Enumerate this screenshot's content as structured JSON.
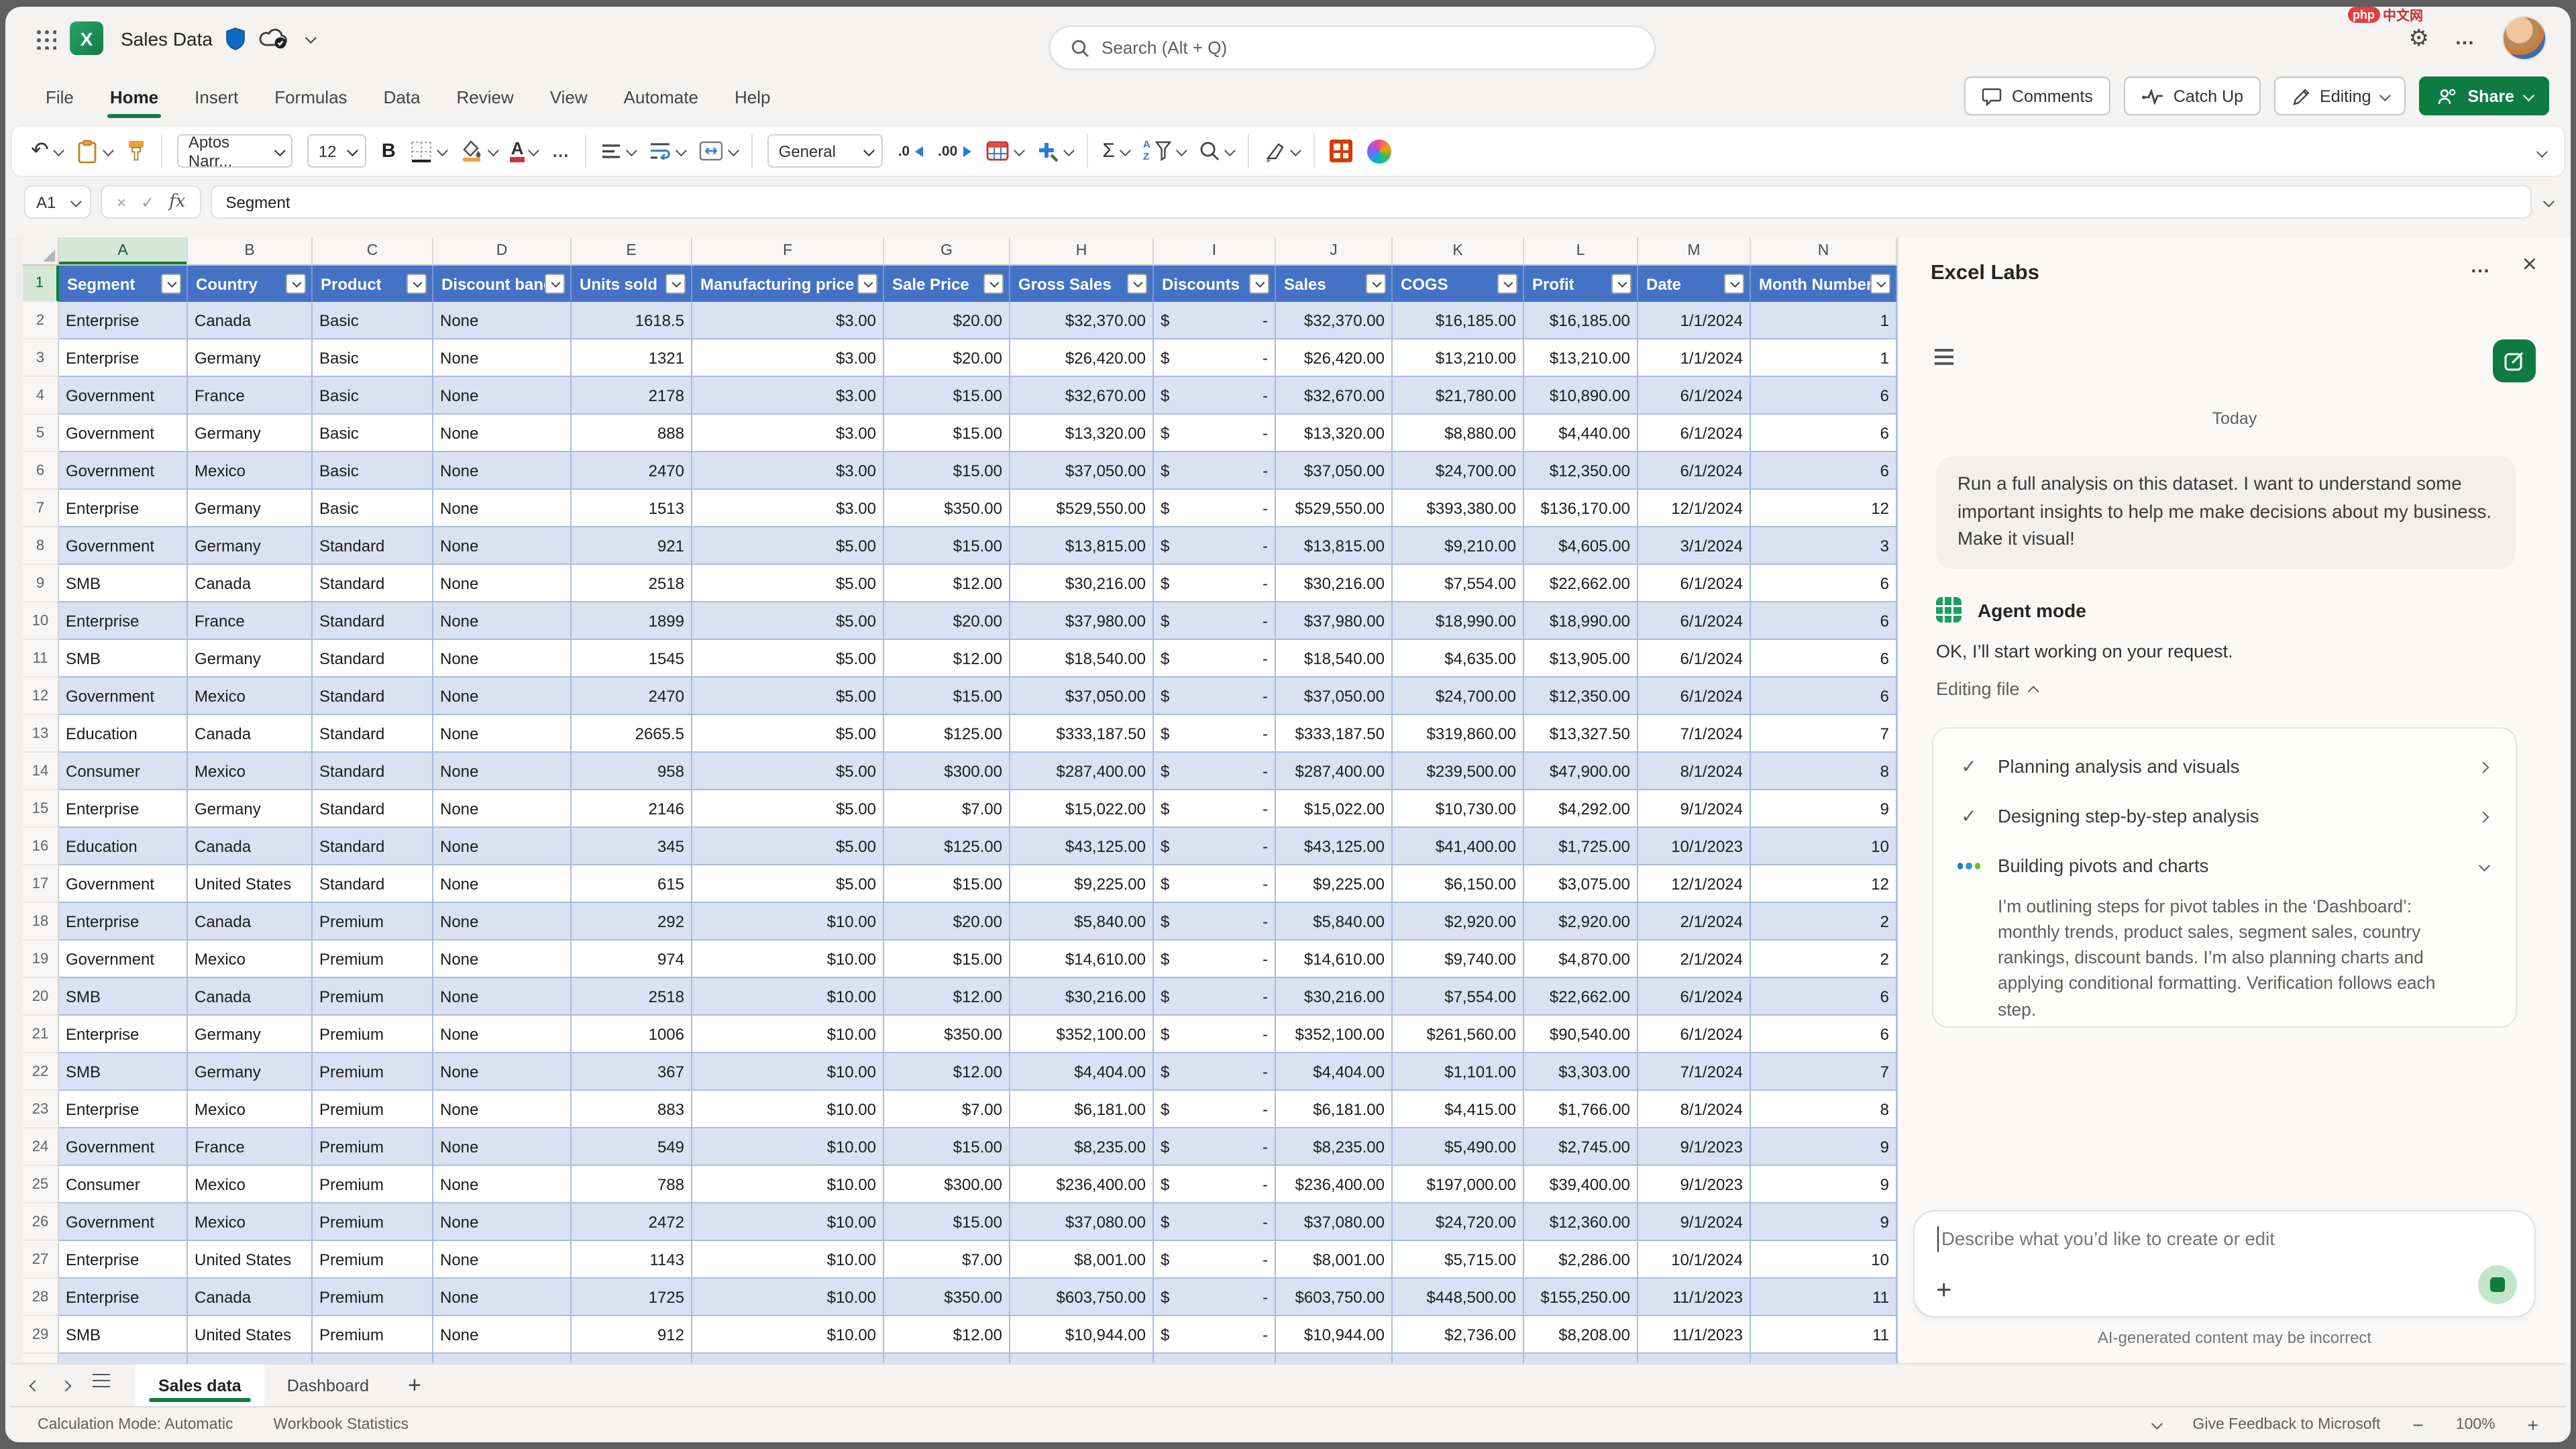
{
  "titlebar": {
    "title": "Sales Data",
    "search_placeholder": "Search (Alt + Q)"
  },
  "watermark": {
    "badge": "php",
    "text": "中文网"
  },
  "menu": {
    "items": [
      {
        "label": "File"
      },
      {
        "label": "Home",
        "active": true
      },
      {
        "label": "Insert"
      },
      {
        "label": "Formulas"
      },
      {
        "label": "Data"
      },
      {
        "label": "Review"
      },
      {
        "label": "View"
      },
      {
        "label": "Automate"
      },
      {
        "label": "Help"
      }
    ]
  },
  "actions": {
    "comments": "Comments",
    "catch_up": "Catch Up",
    "editing": "Editing",
    "share": "Share"
  },
  "ribbon": {
    "font_name": "Aptos Narr...",
    "font_size": "12",
    "number_format": "General"
  },
  "glyphs": {
    "excel_x": "X",
    "undo": "↶",
    "bold": "B",
    "font_color": "A",
    "more": "…",
    "sigma": "Σ",
    "sort_a": "A",
    "sort_z": "Z",
    "dec0": ".0",
    "dec00": ".00",
    "cancel": "×",
    "check": "✓",
    "fx": "fx",
    "gear": "⚙",
    "ellipsis": "…",
    "close": "×",
    "plus": "+",
    "minus": "−",
    "zoom_plus": "+"
  },
  "formula_bar": {
    "name_box": "A1",
    "content": "Segment"
  },
  "colors": {
    "excel_green": "#107C41",
    "table_header_blue": "#4472C4",
    "banded_row": "#D9E1F2",
    "share_green": "#0E7C41",
    "gridline_blue": "#A9BCE0"
  },
  "table": {
    "columns": [
      {
        "letter": "A",
        "label": "Segment",
        "width": 96,
        "align": "left",
        "selected": true
      },
      {
        "letter": "B",
        "label": "Country",
        "width": 93,
        "align": "left"
      },
      {
        "letter": "C",
        "label": "Product",
        "width": 90,
        "align": "left"
      },
      {
        "letter": "D",
        "label": "Discount band",
        "width": 103,
        "align": "left"
      },
      {
        "letter": "E",
        "label": "Units sold",
        "width": 90,
        "align": "right"
      },
      {
        "letter": "F",
        "label": "Manufacturing price",
        "width": 143,
        "align": "right"
      },
      {
        "letter": "G",
        "label": "Sale Price",
        "width": 94,
        "align": "right"
      },
      {
        "letter": "H",
        "label": "Gross Sales",
        "width": 107,
        "align": "right"
      },
      {
        "letter": "I",
        "label": "Discounts",
        "width": 91,
        "align": "acct"
      },
      {
        "letter": "J",
        "label": "Sales",
        "width": 87,
        "align": "right"
      },
      {
        "letter": "K",
        "label": "COGS",
        "width": 98,
        "align": "right"
      },
      {
        "letter": "L",
        "label": "Profit",
        "width": 85,
        "align": "right"
      },
      {
        "letter": "M",
        "label": "Date",
        "width": 84,
        "align": "right"
      },
      {
        "letter": "N",
        "label": "Month Number",
        "width": 109,
        "align": "right"
      }
    ],
    "rows": [
      [
        "Enterprise",
        "Canada",
        "Basic",
        "None",
        "1618.5",
        "$3.00",
        "$20.00",
        "$32,370.00",
        "$ -",
        "$32,370.00",
        "$16,185.00",
        "$16,185.00",
        "1/1/2024",
        "1"
      ],
      [
        "Enterprise",
        "Germany",
        "Basic",
        "None",
        "1321",
        "$3.00",
        "$20.00",
        "$26,420.00",
        "$ -",
        "$26,420.00",
        "$13,210.00",
        "$13,210.00",
        "1/1/2024",
        "1"
      ],
      [
        "Government",
        "France",
        "Basic",
        "None",
        "2178",
        "$3.00",
        "$15.00",
        "$32,670.00",
        "$ -",
        "$32,670.00",
        "$21,780.00",
        "$10,890.00",
        "6/1/2024",
        "6"
      ],
      [
        "Government",
        "Germany",
        "Basic",
        "None",
        "888",
        "$3.00",
        "$15.00",
        "$13,320.00",
        "$ -",
        "$13,320.00",
        "$8,880.00",
        "$4,440.00",
        "6/1/2024",
        "6"
      ],
      [
        "Government",
        "Mexico",
        "Basic",
        "None",
        "2470",
        "$3.00",
        "$15.00",
        "$37,050.00",
        "$ -",
        "$37,050.00",
        "$24,700.00",
        "$12,350.00",
        "6/1/2024",
        "6"
      ],
      [
        "Enterprise",
        "Germany",
        "Basic",
        "None",
        "1513",
        "$3.00",
        "$350.00",
        "$529,550.00",
        "$ -",
        "$529,550.00",
        "$393,380.00",
        "$136,170.00",
        "12/1/2024",
        "12"
      ],
      [
        "Government",
        "Germany",
        "Standard",
        "None",
        "921",
        "$5.00",
        "$15.00",
        "$13,815.00",
        "$ -",
        "$13,815.00",
        "$9,210.00",
        "$4,605.00",
        "3/1/2024",
        "3"
      ],
      [
        "SMB",
        "Canada",
        "Standard",
        "None",
        "2518",
        "$5.00",
        "$12.00",
        "$30,216.00",
        "$ -",
        "$30,216.00",
        "$7,554.00",
        "$22,662.00",
        "6/1/2024",
        "6"
      ],
      [
        "Enterprise",
        "France",
        "Standard",
        "None",
        "1899",
        "$5.00",
        "$20.00",
        "$37,980.00",
        "$ -",
        "$37,980.00",
        "$18,990.00",
        "$18,990.00",
        "6/1/2024",
        "6"
      ],
      [
        "SMB",
        "Germany",
        "Standard",
        "None",
        "1545",
        "$5.00",
        "$12.00",
        "$18,540.00",
        "$ -",
        "$18,540.00",
        "$4,635.00",
        "$13,905.00",
        "6/1/2024",
        "6"
      ],
      [
        "Government",
        "Mexico",
        "Standard",
        "None",
        "2470",
        "$5.00",
        "$15.00",
        "$37,050.00",
        "$ -",
        "$37,050.00",
        "$24,700.00",
        "$12,350.00",
        "6/1/2024",
        "6"
      ],
      [
        "Education",
        "Canada",
        "Standard",
        "None",
        "2665.5",
        "$5.00",
        "$125.00",
        "$333,187.50",
        "$ -",
        "$333,187.50",
        "$319,860.00",
        "$13,327.50",
        "7/1/2024",
        "7"
      ],
      [
        "Consumer",
        "Mexico",
        "Standard",
        "None",
        "958",
        "$5.00",
        "$300.00",
        "$287,400.00",
        "$ -",
        "$287,400.00",
        "$239,500.00",
        "$47,900.00",
        "8/1/2024",
        "8"
      ],
      [
        "Enterprise",
        "Germany",
        "Standard",
        "None",
        "2146",
        "$5.00",
        "$7.00",
        "$15,022.00",
        "$ -",
        "$15,022.00",
        "$10,730.00",
        "$4,292.00",
        "9/1/2024",
        "9"
      ],
      [
        "Education",
        "Canada",
        "Standard",
        "None",
        "345",
        "$5.00",
        "$125.00",
        "$43,125.00",
        "$ -",
        "$43,125.00",
        "$41,400.00",
        "$1,725.00",
        "10/1/2023",
        "10"
      ],
      [
        "Government",
        "United States",
        "Standard",
        "None",
        "615",
        "$5.00",
        "$15.00",
        "$9,225.00",
        "$ -",
        "$9,225.00",
        "$6,150.00",
        "$3,075.00",
        "12/1/2024",
        "12"
      ],
      [
        "Enterprise",
        "Canada",
        "Premium",
        "None",
        "292",
        "$10.00",
        "$20.00",
        "$5,840.00",
        "$ -",
        "$5,840.00",
        "$2,920.00",
        "$2,920.00",
        "2/1/2024",
        "2"
      ],
      [
        "Government",
        "Mexico",
        "Premium",
        "None",
        "974",
        "$10.00",
        "$15.00",
        "$14,610.00",
        "$ -",
        "$14,610.00",
        "$9,740.00",
        "$4,870.00",
        "2/1/2024",
        "2"
      ],
      [
        "SMB",
        "Canada",
        "Premium",
        "None",
        "2518",
        "$10.00",
        "$12.00",
        "$30,216.00",
        "$ -",
        "$30,216.00",
        "$7,554.00",
        "$22,662.00",
        "6/1/2024",
        "6"
      ],
      [
        "Enterprise",
        "Germany",
        "Premium",
        "None",
        "1006",
        "$10.00",
        "$350.00",
        "$352,100.00",
        "$ -",
        "$352,100.00",
        "$261,560.00",
        "$90,540.00",
        "6/1/2024",
        "6"
      ],
      [
        "SMB",
        "Germany",
        "Premium",
        "None",
        "367",
        "$10.00",
        "$12.00",
        "$4,404.00",
        "$ -",
        "$4,404.00",
        "$1,101.00",
        "$3,303.00",
        "7/1/2024",
        "7"
      ],
      [
        "Enterprise",
        "Mexico",
        "Premium",
        "None",
        "883",
        "$10.00",
        "$7.00",
        "$6,181.00",
        "$ -",
        "$6,181.00",
        "$4,415.00",
        "$1,766.00",
        "8/1/2024",
        "8"
      ],
      [
        "Government",
        "France",
        "Premium",
        "None",
        "549",
        "$10.00",
        "$15.00",
        "$8,235.00",
        "$ -",
        "$8,235.00",
        "$5,490.00",
        "$2,745.00",
        "9/1/2023",
        "9"
      ],
      [
        "Consumer",
        "Mexico",
        "Premium",
        "None",
        "788",
        "$10.00",
        "$300.00",
        "$236,400.00",
        "$ -",
        "$236,400.00",
        "$197,000.00",
        "$39,400.00",
        "9/1/2023",
        "9"
      ],
      [
        "Government",
        "Mexico",
        "Premium",
        "None",
        "2472",
        "$10.00",
        "$15.00",
        "$37,080.00",
        "$ -",
        "$37,080.00",
        "$24,720.00",
        "$12,360.00",
        "9/1/2024",
        "9"
      ],
      [
        "Enterprise",
        "United States",
        "Premium",
        "None",
        "1143",
        "$10.00",
        "$7.00",
        "$8,001.00",
        "$ -",
        "$8,001.00",
        "$5,715.00",
        "$2,286.00",
        "10/1/2024",
        "10"
      ],
      [
        "Enterprise",
        "Canada",
        "Premium",
        "None",
        "1725",
        "$10.00",
        "$350.00",
        "$603,750.00",
        "$ -",
        "$603,750.00",
        "$448,500.00",
        "$155,250.00",
        "11/1/2023",
        "11"
      ],
      [
        "SMB",
        "United States",
        "Premium",
        "None",
        "912",
        "$10.00",
        "$12.00",
        "$10,944.00",
        "$ -",
        "$10,944.00",
        "$2,736.00",
        "$8,208.00",
        "11/1/2023",
        "11"
      ]
    ]
  },
  "panel": {
    "title": "Excel Labs",
    "date_label": "Today",
    "user_message": "Run a full analysis on this dataset. I want to understand some important insights to help me make decisions about my business. Make it visual!",
    "agent_mode_label": "Agent mode",
    "agent_reply": "OK, I’ll start working on your request.",
    "editing_file_label": "Editing file",
    "steps": [
      {
        "label": "Planning analysis and visuals",
        "status": "done"
      },
      {
        "label": "Designing step-by-step analysis",
        "status": "done"
      },
      {
        "label": "Building pivots and charts",
        "status": "in_progress",
        "description": "I’m outlining steps for pivot tables in the ‘Dashboard’: monthly trends, product sales, segment sales, country rankings, discount bands. I’m also planning charts and applying conditional formatting. Verification follows each step."
      }
    ],
    "input_placeholder": "Describe what you’d like to create or edit",
    "disclaimer": "AI-generated content may be incorrect"
  },
  "sheet_tabs": {
    "tabs": [
      {
        "label": "Sales data",
        "active": true
      },
      {
        "label": "Dashboard",
        "active": false
      }
    ]
  },
  "status_bar": {
    "calculation_mode": "Calculation Mode: Automatic",
    "workbook_statistics": "Workbook Statistics",
    "feedback": "Give Feedback to Microsoft",
    "zoom_level": "100%"
  }
}
